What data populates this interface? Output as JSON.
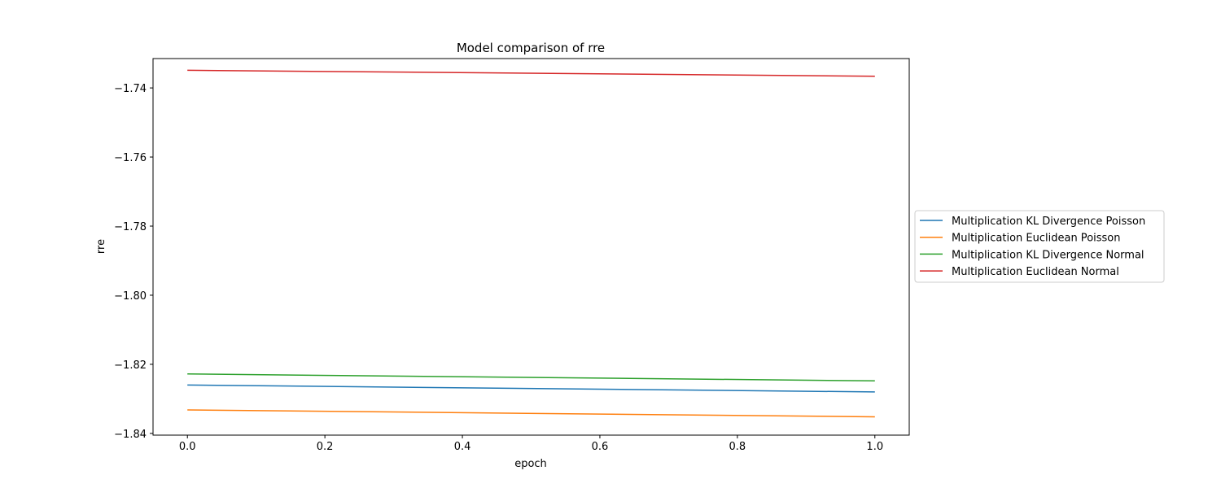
{
  "chart_data": {
    "type": "line",
    "title": "Model comparison of rre",
    "xlabel": "epoch",
    "ylabel": "rre",
    "xlim": [
      -0.05,
      1.05
    ],
    "ylim": [
      -1.8405,
      -1.7315
    ],
    "x_ticks": [
      0.0,
      0.2,
      0.4,
      0.6,
      0.8,
      1.0
    ],
    "x_tick_labels": [
      "0.0",
      "0.2",
      "0.4",
      "0.6",
      "0.8",
      "1.0"
    ],
    "y_ticks": [
      -1.74,
      -1.76,
      -1.78,
      -1.8,
      -1.82,
      -1.84
    ],
    "y_tick_labels": [
      "−1.74",
      "−1.76",
      "−1.78",
      "−1.80",
      "−1.82",
      "−1.84"
    ],
    "grid": false,
    "legend_position": "center-right-outside",
    "x": [
      0,
      1
    ],
    "series": [
      {
        "name": "Multiplication KL Divergence Poisson",
        "values": [
          -1.826,
          -1.828
        ],
        "color": "#1f77b4"
      },
      {
        "name": "Multiplication Euclidean Poisson",
        "values": [
          -1.8332,
          -1.8352
        ],
        "color": "#ff7f0e"
      },
      {
        "name": "Multiplication KL Divergence Normal",
        "values": [
          -1.8228,
          -1.8248
        ],
        "color": "#2ca02c"
      },
      {
        "name": "Multiplication Euclidean Normal",
        "values": [
          -1.7349,
          -1.7366
        ],
        "color": "#d62728"
      }
    ]
  }
}
